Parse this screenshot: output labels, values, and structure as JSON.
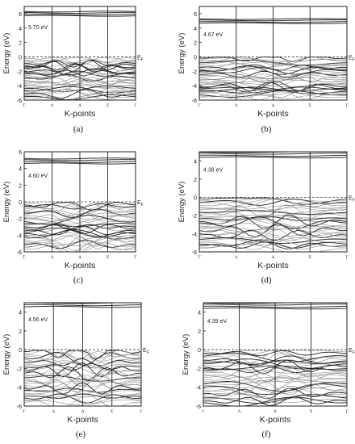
{
  "figure": {
    "ylabel": "Energy (eV)",
    "xlabel": "K-points",
    "fermi_label": "E",
    "fermi_sub": "F"
  },
  "chart_data": [
    {
      "type": "line",
      "label": "(a)",
      "gap_label": "5.70 eV",
      "ylim": [
        -6,
        7
      ],
      "yticks": [
        -6,
        -4,
        -2,
        0,
        2,
        4,
        6
      ],
      "x": [
        "Γ",
        "Λ",
        "Δ",
        "Σ",
        "Γ"
      ],
      "fermi_level": 0,
      "conduction_band_min": 5.7,
      "valence_band_max": -0.1,
      "grid": false,
      "series": []
    },
    {
      "type": "line",
      "label": "(b)",
      "gap_label": "4.67 eV",
      "ylim": [
        -6,
        7
      ],
      "yticks": [
        -6,
        -4,
        -2,
        0,
        2,
        4,
        6
      ],
      "x": [
        "Γ",
        "Λ",
        "Δ",
        "Σ",
        "Γ"
      ],
      "fermi_level": 0,
      "conduction_band_min": 4.67,
      "valence_band_max": 0.0,
      "grid": false,
      "series": []
    },
    {
      "type": "line",
      "label": "(c)",
      "gap_label": "4.60 eV",
      "ylim": [
        -6,
        6
      ],
      "yticks": [
        -6,
        -4,
        -2,
        0,
        2,
        4,
        6
      ],
      "x": [
        "Γ",
        "Λ",
        "Δ",
        "Σ",
        "Γ"
      ],
      "fermi_level": 0,
      "conduction_band_min": 4.6,
      "valence_band_max": -0.05,
      "grid": false,
      "series": []
    },
    {
      "type": "line",
      "label": "(d)",
      "gap_label": "4.38 eV",
      "ylim": [
        -6,
        5
      ],
      "yticks": [
        -6,
        -4,
        -2,
        0,
        2,
        4
      ],
      "x": [
        "Γ",
        "Λ",
        "Δ",
        "Σ",
        "Γ"
      ],
      "fermi_level": 0,
      "conduction_band_min": 4.38,
      "valence_band_max": -0.05,
      "grid": false,
      "series": []
    },
    {
      "type": "line",
      "label": "(e)",
      "gap_label": "4.56 eV",
      "ylim": [
        -6,
        5
      ],
      "yticks": [
        -6,
        -4,
        -2,
        0,
        2,
        4
      ],
      "x": [
        "Γ",
        "Λ",
        "Δ",
        "Σ",
        "Γ"
      ],
      "fermi_level": 0,
      "conduction_band_min": 4.56,
      "valence_band_max": -0.05,
      "grid": false,
      "series": []
    },
    {
      "type": "line",
      "label": "(f)",
      "gap_label": "4.39 eV",
      "ylim": [
        -6,
        5
      ],
      "yticks": [
        -6,
        -4,
        -2,
        0,
        2,
        4
      ],
      "x": [
        "Γ",
        "Λ",
        "Δ",
        "Σ",
        "Γ"
      ],
      "fermi_level": 0,
      "conduction_band_min": 4.39,
      "valence_band_max": -0.05,
      "grid": false,
      "series": []
    }
  ]
}
